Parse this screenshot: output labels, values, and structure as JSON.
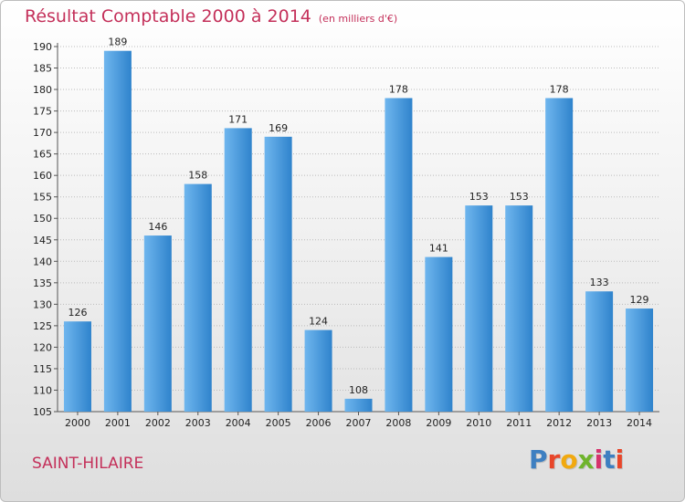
{
  "header": {
    "title": "Résultat Comptable 2000 à 2014",
    "subtitle": "(en milliers d'€)"
  },
  "footer": {
    "town": "SAINT-HILAIRE",
    "logo": "Proxiti",
    "logo_colors": [
      "#3d7fc1",
      "#e8462a",
      "#f1a90f",
      "#6fb42c",
      "#d6336c",
      "#3d7fc1",
      "#e8462a"
    ]
  },
  "colors": {
    "bar_light": "#6fb6ee",
    "bar_dark": "#2f83cc",
    "accent": "#c4305a",
    "grid": "#bbbbbb"
  },
  "chart_data": {
    "type": "bar",
    "categories": [
      "2000",
      "2001",
      "2002",
      "2003",
      "2004",
      "2005",
      "2006",
      "2007",
      "2008",
      "2009",
      "2010",
      "2011",
      "2012",
      "2013",
      "2014"
    ],
    "values": [
      126,
      189,
      146,
      158,
      171,
      169,
      124,
      108,
      178,
      141,
      153,
      153,
      178,
      133,
      129
    ],
    "ylim": [
      105,
      190
    ],
    "yticks": [
      105,
      110,
      115,
      120,
      125,
      130,
      135,
      140,
      145,
      150,
      155,
      160,
      165,
      170,
      175,
      180,
      185,
      190
    ],
    "grid": "horizontal",
    "xlabel": "",
    "ylabel": ""
  }
}
